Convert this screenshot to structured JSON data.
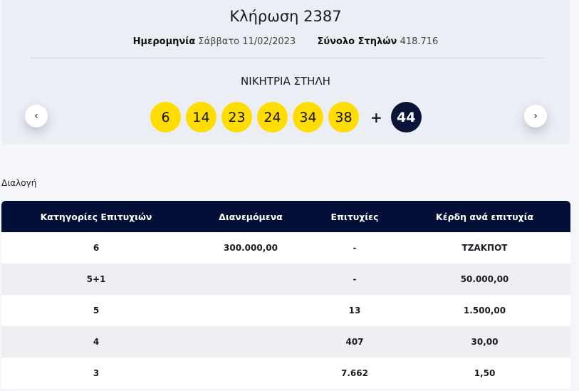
{
  "draw": {
    "title": "Κλήρωση 2387",
    "date_label": "Ημερομηνία",
    "date_value": "Σάββατο 11/02/2023",
    "total_label": "Σύνολο Στηλών",
    "total_value": "418.716"
  },
  "winning": {
    "heading": "ΝΙΚΗΤΡΙΑ ΣΤΗΛΗ",
    "numbers": [
      "6",
      "14",
      "23",
      "24",
      "34",
      "38"
    ],
    "plus": "+",
    "bonus": "44",
    "ball_color": "#ffdd00",
    "bonus_color": "#0a1438"
  },
  "nav": {
    "prev": "‹",
    "next": "›"
  },
  "section_label": "Διαλογή",
  "table": {
    "headers": [
      "Κατηγορίες Επιτυχιών",
      "Διανεμόμενα",
      "Επιτυχίες",
      "Κέρδη ανά επιτυχία"
    ],
    "rows": [
      [
        "6",
        "300.000,00",
        "-",
        "ΤΖΑΚΠΟΤ"
      ],
      [
        "5+1",
        "",
        "-",
        "50.000,00"
      ],
      [
        "5",
        "",
        "13",
        "1.500,00"
      ],
      [
        "4",
        "",
        "407",
        "30,00"
      ],
      [
        "3",
        "",
        "7.662",
        "1,50"
      ]
    ]
  }
}
